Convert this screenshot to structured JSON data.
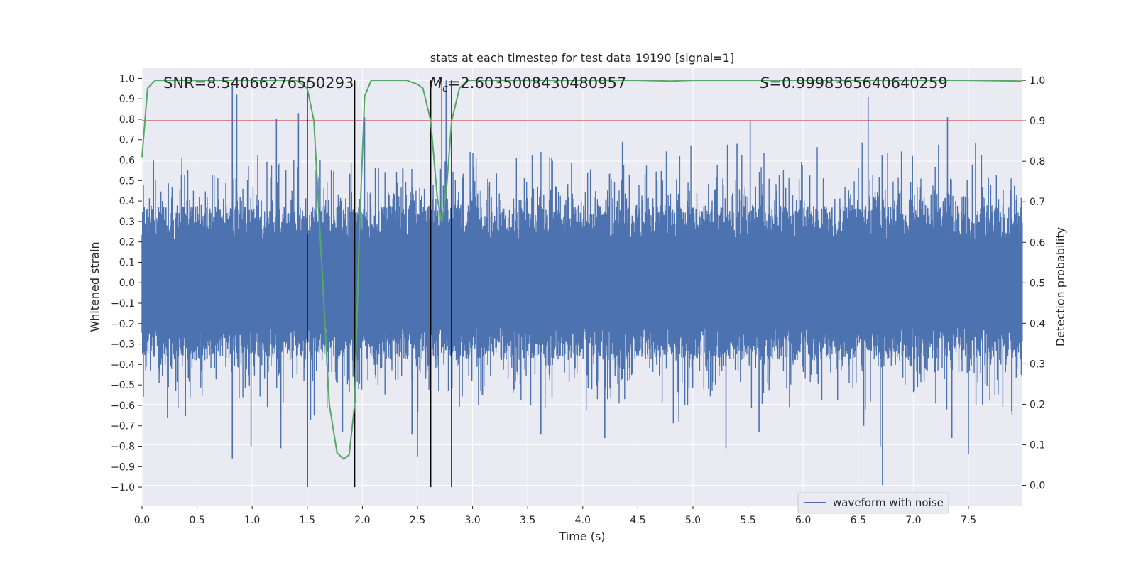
{
  "chart_data": {
    "type": "line",
    "title": "stats at each timestep for test data 19190 [signal=1]",
    "xlabel": "Time (s)",
    "ylabel": "Whitened strain",
    "y2label": "Detection probability",
    "xlim": [
      0.0,
      7.99
    ],
    "ylim": [
      -1.09,
      1.05
    ],
    "y2lim": [
      -0.05,
      1.03
    ],
    "xticks": [
      "0.0",
      "0.5",
      "1.0",
      "1.5",
      "2.0",
      "2.5",
      "3.0",
      "3.5",
      "4.0",
      "4.5",
      "5.0",
      "5.5",
      "6.0",
      "6.5",
      "7.0",
      "7.5"
    ],
    "yticks": [
      "1.0",
      "0.9",
      "0.8",
      "0.7",
      "0.6",
      "0.5",
      "0.4",
      "0.3",
      "0.2",
      "0.1",
      "0.0",
      "−0.1",
      "−0.2",
      "−0.3",
      "−0.4",
      "−0.5",
      "−0.6",
      "−0.7",
      "−0.8",
      "−0.9",
      "−1.0"
    ],
    "y2ticks": [
      "1.0",
      "0.9",
      "0.8",
      "0.7",
      "0.6",
      "0.5",
      "0.4",
      "0.3",
      "0.2",
      "0.1",
      "0.0"
    ],
    "grid": true,
    "legend_position": "lower-right",
    "background": "#eaeaf2",
    "annotations": {
      "snr": "SNR=8.54066276550293",
      "mc_symbol": "M",
      "mc_subscript": "c",
      "mc_value": "=2.6035008430480957",
      "s_symbol": "S",
      "s_value": "=0.9998365640640259"
    },
    "series": [
      {
        "name": "waveform with noise",
        "color": "#4c72b0",
        "axis": "left",
        "envelope": {
          "core_amplitude": 0.38,
          "sample_step": 0.0042,
          "seed": 19190
        }
      },
      {
        "color": "#55a868",
        "axis": "right",
        "x": [
          0.0,
          0.05,
          0.12,
          0.3,
          0.6,
          0.9,
          1.2,
          1.4,
          1.5,
          1.56,
          1.63,
          1.7,
          1.77,
          1.83,
          1.88,
          1.93,
          1.97,
          2.02,
          2.08,
          2.2,
          2.4,
          2.5,
          2.55,
          2.62,
          2.68,
          2.72,
          2.76,
          2.81,
          2.88,
          2.95,
          3.02,
          3.5,
          4.0,
          4.5,
          4.8,
          5.0,
          5.5,
          6.0,
          6.5,
          7.0,
          7.5,
          7.99
        ],
        "y": [
          0.81,
          0.98,
          1.0,
          1.0,
          1.0,
          1.0,
          1.0,
          1.0,
          0.98,
          0.9,
          0.55,
          0.2,
          0.08,
          0.065,
          0.075,
          0.2,
          0.6,
          0.96,
          1.0,
          1.0,
          1.0,
          0.99,
          0.98,
          0.9,
          0.71,
          0.65,
          0.72,
          0.9,
          0.98,
          1.0,
          1.0,
          1.0,
          1.0,
          1.0,
          0.998,
          1.0,
          1.0,
          1.0,
          1.0,
          1.0,
          1.0,
          0.998
        ]
      }
    ],
    "threshold_line": {
      "y2": 0.9,
      "color": "#c44e52"
    },
    "vertical_lines": {
      "x": [
        1.5,
        1.93,
        2.62,
        2.81
      ],
      "ymin": -1.0,
      "ymax": 0.99,
      "color": "#000000"
    },
    "spikes": [
      {
        "x": 0.82,
        "v": 0.97
      },
      {
        "x": 0.86,
        "v": 0.92
      },
      {
        "x": 1.42,
        "v": 0.83
      },
      {
        "x": 1.22,
        "v": 0.8
      },
      {
        "x": 2.72,
        "v": 1.0
      },
      {
        "x": 2.76,
        "v": 0.99
      },
      {
        "x": 2.02,
        "v": 0.81
      },
      {
        "x": 5.52,
        "v": 0.79
      },
      {
        "x": 6.59,
        "v": 0.91
      },
      {
        "x": 7.31,
        "v": 0.81
      },
      {
        "x": 4.36,
        "v": 0.69
      },
      {
        "x": 5.4,
        "v": 0.68
      },
      {
        "x": 0.82,
        "v": -0.86
      },
      {
        "x": 1.26,
        "v": -0.81
      },
      {
        "x": 0.99,
        "v": -0.8
      },
      {
        "x": 1.53,
        "v": -0.67
      },
      {
        "x": 2.5,
        "v": -0.85
      },
      {
        "x": 5.3,
        "v": -0.81
      },
      {
        "x": 6.72,
        "v": -0.99
      },
      {
        "x": 7.5,
        "v": -0.84
      },
      {
        "x": 6.7,
        "v": -0.8
      },
      {
        "x": 1.82,
        "v": -0.73
      },
      {
        "x": 2.45,
        "v": -0.74
      },
      {
        "x": 3.62,
        "v": -0.74
      },
      {
        "x": 4.2,
        "v": -0.76
      },
      {
        "x": 5.6,
        "v": -0.73
      },
      {
        "x": 6.55,
        "v": -0.7
      },
      {
        "x": 7.35,
        "v": -0.76
      }
    ]
  }
}
